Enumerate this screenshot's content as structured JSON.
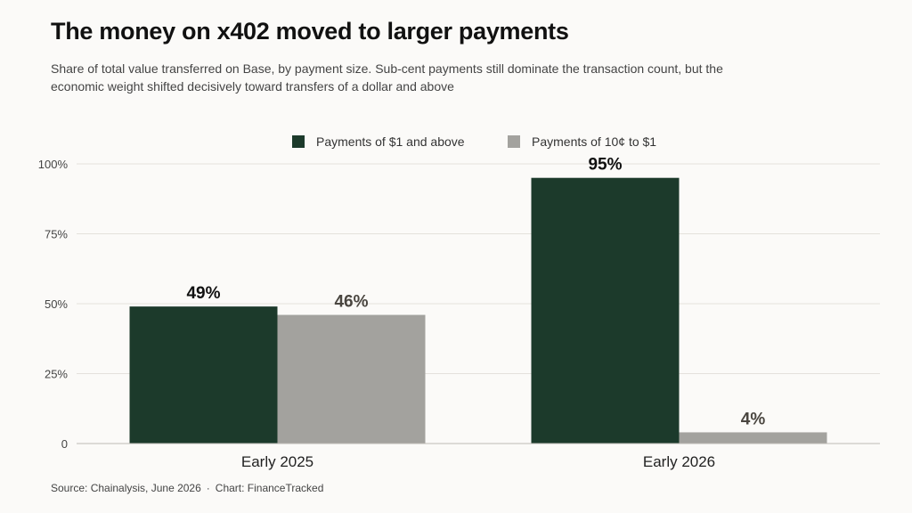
{
  "title": "The money on x402 moved to larger payments",
  "subtitle": "Share of total value transferred on Base, by payment size. Sub-cent payments still dominate the transaction count, but the economic weight shifted decisively toward transfers of a dollar and above",
  "footer": {
    "source": "Source: Chainalysis, June 2026",
    "separator": "·",
    "credit": "Chart: FinanceTracked"
  },
  "chart_data": {
    "type": "bar",
    "categories": [
      "Early 2025",
      "Early 2026"
    ],
    "series": [
      {
        "name": "Payments of $1 and above",
        "values": [
          49,
          95
        ],
        "color": "#1c3a2b",
        "label_color": "#111111"
      },
      {
        "name": "Payments of 10¢ to $1",
        "values": [
          46,
          4
        ],
        "color": "#a3a29e",
        "label_color": "#4a4640"
      }
    ],
    "value_labels": [
      [
        "49%",
        "95%"
      ],
      [
        "46%",
        "4%"
      ]
    ],
    "ylim": [
      0,
      100
    ],
    "yticks": [
      0,
      25,
      50,
      75,
      100
    ],
    "ytick_labels": [
      "0",
      "25%",
      "50%",
      "75%",
      "100%"
    ],
    "grid": true,
    "legend_position": "top-center",
    "xlabel": "",
    "ylabel": ""
  }
}
